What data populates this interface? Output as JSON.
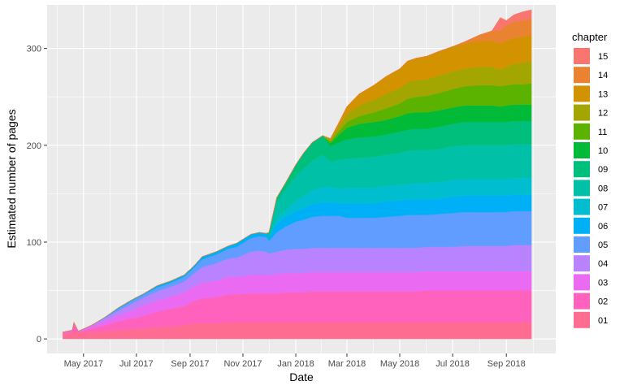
{
  "chart_data": {
    "type": "area",
    "stacked": true,
    "xlabel": "Date",
    "ylabel": "Estimated number of pages",
    "legend_title": "chapter",
    "legend_position": "right",
    "grid": true,
    "x_tick_labels": [
      "May 2017",
      "Jul 2017",
      "Sep 2017",
      "Nov 2017",
      "Jan 2018",
      "Mar 2018",
      "May 2018",
      "Jul 2018",
      "Sep 2018"
    ],
    "x_tick_dates": [
      "2017-05-01",
      "2017-07-01",
      "2017-09-01",
      "2017-11-01",
      "2018-01-01",
      "2018-03-01",
      "2018-05-01",
      "2018-07-01",
      "2018-09-01"
    ],
    "y_ticks": [
      0,
      100,
      200,
      300
    ],
    "xlim": [
      "2017-03-20",
      "2018-10-28"
    ],
    "ylim": [
      -15,
      345
    ],
    "x": [
      "2017-04-07",
      "2017-04-18",
      "2017-04-20",
      "2017-04-25",
      "2017-05-10",
      "2017-05-25",
      "2017-06-10",
      "2017-06-25",
      "2017-07-10",
      "2017-07-25",
      "2017-08-10",
      "2017-08-25",
      "2017-09-05",
      "2017-09-15",
      "2017-10-01",
      "2017-10-15",
      "2017-10-25",
      "2017-11-10",
      "2017-11-20",
      "2017-11-28",
      "2017-12-01",
      "2017-12-10",
      "2017-12-20",
      "2018-01-01",
      "2018-01-10",
      "2018-01-20",
      "2018-02-01",
      "2018-02-10",
      "2018-02-20",
      "2018-03-01",
      "2018-03-15",
      "2018-04-01",
      "2018-04-15",
      "2018-05-01",
      "2018-05-10",
      "2018-05-20",
      "2018-06-01",
      "2018-06-15",
      "2018-07-01",
      "2018-07-15",
      "2018-08-01",
      "2018-08-15",
      "2018-08-25",
      "2018-09-01",
      "2018-09-10",
      "2018-09-20",
      "2018-09-30"
    ],
    "series": [
      {
        "name": "01",
        "color": "#FF6C91",
        "values": [
          5,
          6,
          7,
          7,
          7,
          8,
          9,
          10,
          11,
          12,
          13,
          14,
          16,
          16,
          16,
          17,
          17,
          17,
          17,
          17,
          17,
          17,
          17,
          17,
          17,
          17,
          17,
          17,
          17,
          17,
          17,
          17,
          17,
          17,
          17,
          17,
          17,
          17,
          17,
          17,
          17,
          17,
          17,
          17,
          17,
          17,
          17
        ]
      },
      {
        "name": "02",
        "color": "#FF62BC",
        "values": [
          1,
          2,
          9,
          0,
          4,
          6,
          9,
          11,
          13,
          16,
          18,
          20,
          23,
          26,
          27,
          29,
          29,
          30,
          30,
          30,
          30,
          30,
          31,
          31,
          31,
          32,
          32,
          32,
          32,
          32,
          32,
          32,
          32,
          32,
          32,
          32,
          33,
          33,
          33,
          33,
          33,
          33,
          33,
          33,
          33,
          33,
          33
        ]
      },
      {
        "name": "03",
        "color": "#EA6AF1",
        "values": [
          1,
          1,
          1,
          1,
          2,
          4,
          6,
          8,
          11,
          12,
          13,
          14,
          15,
          16,
          17,
          18,
          18,
          19,
          19,
          19,
          19,
          20,
          20,
          20,
          20,
          20,
          20,
          20,
          20,
          20,
          20,
          20,
          20,
          20,
          20,
          20,
          20,
          20,
          20,
          20,
          20,
          20,
          20,
          20,
          20,
          20,
          20
        ]
      },
      {
        "name": "04",
        "color": "#B983FF",
        "values": [
          0,
          0,
          0,
          0,
          1,
          3,
          5,
          7,
          8,
          9,
          10,
          11,
          13,
          16,
          18,
          19,
          20,
          24,
          25,
          24,
          22,
          23,
          24,
          25,
          25,
          25,
          25,
          25,
          25,
          25,
          25,
          25,
          25,
          25,
          25,
          25,
          25,
          25,
          25,
          26,
          26,
          26,
          26,
          26,
          27,
          27,
          27
        ]
      },
      {
        "name": "05",
        "color": "#619CFF",
        "values": [
          0,
          0,
          0,
          0,
          0,
          1,
          2,
          3,
          3,
          4,
          4,
          5,
          6,
          8,
          9,
          10,
          11,
          14,
          15,
          15,
          13,
          20,
          24,
          28,
          30,
          32,
          33,
          33,
          33,
          31,
          31,
          31,
          32,
          33,
          34,
          34,
          33,
          34,
          35,
          35,
          35,
          35,
          35,
          35,
          35,
          35,
          35
        ]
      },
      {
        "name": "06",
        "color": "#00B0F6",
        "values": [
          0,
          0,
          0,
          0,
          0,
          0,
          1,
          1,
          1,
          2,
          2,
          2,
          2,
          3,
          3,
          3,
          4,
          4,
          4,
          4,
          4,
          9,
          10,
          11,
          12,
          13,
          14,
          14,
          13,
          15,
          15,
          15,
          16,
          16,
          16,
          16,
          16,
          16,
          17,
          17,
          17,
          17,
          17,
          17,
          17,
          17,
          17
        ]
      },
      {
        "name": "07",
        "color": "#00BDD0",
        "values": [
          0,
          0,
          0,
          0,
          0,
          0,
          0,
          0,
          0,
          0,
          0,
          0,
          0,
          0,
          0,
          0,
          0,
          0,
          0,
          0,
          0,
          6,
          7,
          10,
          12,
          14,
          16,
          16,
          15,
          16,
          16,
          16,
          16,
          16,
          16,
          17,
          17,
          17,
          17,
          17,
          17,
          17,
          17,
          17,
          17,
          17,
          17
        ]
      },
      {
        "name": "08",
        "color": "#00C1A7",
        "values": [
          0,
          0,
          0,
          0,
          0,
          0,
          0,
          0,
          0,
          0,
          0,
          0,
          0,
          0,
          0,
          0,
          0,
          0,
          0,
          0,
          5,
          16,
          21,
          26,
          29,
          31,
          33,
          26,
          30,
          30,
          31,
          32,
          32,
          33,
          34,
          34,
          34,
          34,
          35,
          35,
          35,
          35,
          35,
          35,
          35,
          35,
          35
        ]
      },
      {
        "name": "09",
        "color": "#00BF7D",
        "values": [
          0,
          0,
          0,
          0,
          0,
          0,
          0,
          0,
          0,
          0,
          0,
          0,
          0,
          0,
          0,
          0,
          0,
          0,
          0,
          0,
          0,
          5,
          7,
          12,
          16,
          19,
          20,
          16,
          18,
          20,
          21,
          21,
          21,
          22,
          22,
          22,
          22,
          23,
          23,
          24,
          24,
          24,
          24,
          24,
          24,
          24,
          24
        ]
      },
      {
        "name": "10",
        "color": "#00BA38",
        "values": [
          0,
          0,
          0,
          0,
          0,
          0,
          0,
          0,
          0,
          0,
          0,
          0,
          0,
          0,
          0,
          0,
          0,
          0,
          0,
          0,
          0,
          0,
          0,
          0,
          0,
          0,
          0,
          3,
          8,
          12,
          14,
          15,
          15,
          16,
          17,
          17,
          17,
          17,
          17,
          17,
          17,
          17,
          16,
          17,
          17,
          17,
          17
        ]
      },
      {
        "name": "11",
        "color": "#5BB300",
        "values": [
          0,
          0,
          0,
          0,
          0,
          0,
          0,
          0,
          0,
          0,
          0,
          0,
          0,
          0,
          0,
          0,
          0,
          0,
          0,
          0,
          0,
          0,
          0,
          0,
          0,
          0,
          0,
          2,
          4,
          6,
          8,
          10,
          12,
          13,
          15,
          16,
          17,
          18,
          19,
          20,
          21,
          21,
          21,
          21,
          21,
          21,
          22
        ]
      },
      {
        "name": "12",
        "color": "#A3A500",
        "values": [
          0,
          0,
          0,
          0,
          0,
          0,
          0,
          0,
          0,
          0,
          0,
          0,
          0,
          0,
          0,
          0,
          0,
          0,
          0,
          0,
          0,
          0,
          0,
          0,
          0,
          0,
          0,
          2,
          5,
          8,
          11,
          13,
          15,
          16,
          17,
          17,
          17,
          18,
          18,
          18,
          19,
          19,
          17,
          19,
          21,
          22,
          23
        ]
      },
      {
        "name": "13",
        "color": "#D39200",
        "values": [
          0,
          0,
          0,
          0,
          0,
          0,
          0,
          0,
          0,
          0,
          0,
          0,
          0,
          0,
          0,
          0,
          0,
          0,
          0,
          0,
          0,
          0,
          0,
          0,
          0,
          0,
          0,
          1,
          4,
          8,
          12,
          15,
          18,
          20,
          22,
          23,
          24,
          25,
          26,
          26,
          27,
          27,
          27,
          27,
          27,
          27,
          27
        ]
      },
      {
        "name": "14",
        "color": "#EA8331",
        "values": [
          0,
          0,
          0,
          0,
          0,
          0,
          0,
          0,
          0,
          0,
          0,
          0,
          0,
          0,
          0,
          0,
          0,
          0,
          0,
          0,
          0,
          0,
          0,
          0,
          0,
          0,
          0,
          0,
          0,
          0,
          0,
          0,
          0,
          0,
          0,
          0,
          0,
          0,
          0,
          2,
          6,
          10,
          14,
          16,
          17,
          17,
          17
        ]
      },
      {
        "name": "15",
        "color": "#F8766D",
        "values": [
          0,
          0,
          0,
          0,
          0,
          0,
          0,
          0,
          0,
          0,
          0,
          0,
          0,
          0,
          0,
          0,
          0,
          0,
          0,
          0,
          0,
          0,
          0,
          0,
          0,
          0,
          0,
          0,
          0,
          0,
          0,
          0,
          0,
          0,
          0,
          0,
          0,
          0,
          0,
          0,
          0,
          0,
          13,
          5,
          7,
          9,
          9
        ]
      }
    ]
  }
}
